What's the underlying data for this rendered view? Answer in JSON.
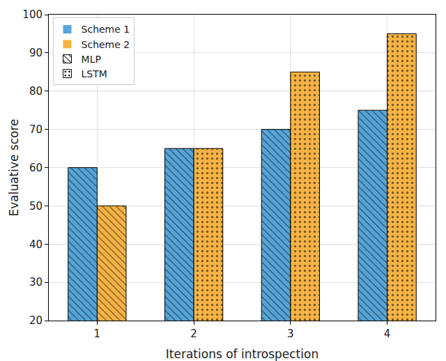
{
  "chart_data": {
    "type": "bar",
    "x_label": "Iterations of introspection",
    "y_label": "Evaluative score",
    "categories": [
      "1",
      "2",
      "3",
      "4"
    ],
    "series": [
      {
        "name": "Scheme 1",
        "color": "#56a5d8",
        "values": [
          60,
          65,
          70,
          75
        ],
        "marker": [
          "MLP",
          "MLP",
          "MLP",
          "MLP"
        ]
      },
      {
        "name": "Scheme 2",
        "color": "#f6b345",
        "values": [
          50,
          65,
          85,
          95
        ],
        "marker": [
          "MLP",
          "LSTM",
          "LSTM",
          "LSTM"
        ]
      }
    ],
    "patterns": [
      {
        "name": "MLP",
        "marker": "hatch"
      },
      {
        "name": "LSTM",
        "marker": "dots"
      }
    ],
    "ylim": [
      20,
      100
    ],
    "yticks": [
      20,
      30,
      40,
      50,
      60,
      70,
      80,
      90,
      100
    ],
    "grid": true,
    "legend": "upper left"
  }
}
